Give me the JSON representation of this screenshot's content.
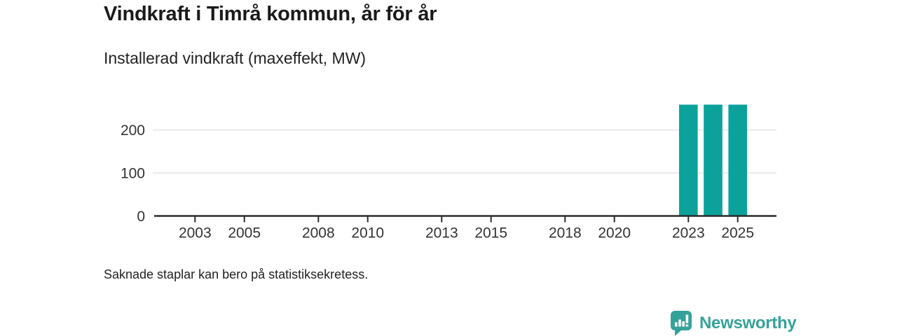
{
  "header": {
    "title": "Vindkraft i Timrå kommun, år för år",
    "subtitle": "Installerad vindkraft (maxeffekt, MW)"
  },
  "footer": {
    "note": "Saknade staplar kan bero på statistiksekretess.",
    "brand": "Newsworthy"
  },
  "colors": {
    "bar": "#0ba29b",
    "axis": "#2b2b2b",
    "grid": "#e2e2e2",
    "tick_label": "#333333",
    "brand": "#35a29a"
  },
  "chart_data": {
    "type": "bar",
    "title": "Vindkraft i Timrå kommun, år för år",
    "subtitle": "Installerad vindkraft (maxeffekt, MW)",
    "ylabel": "Installerad vindkraft (maxeffekt, MW)",
    "x_domain": [
      2002,
      2026
    ],
    "ylim": [
      0,
      280
    ],
    "y_ticks": [
      0,
      100,
      200
    ],
    "x_tick_labels": [
      "2003",
      "2005",
      "2008",
      "2010",
      "2013",
      "2015",
      "2018",
      "2020",
      "2023",
      "2025"
    ],
    "bars": [
      {
        "year": 2023,
        "value": 259
      },
      {
        "year": 2024,
        "value": 259
      },
      {
        "year": 2025,
        "value": 259
      }
    ],
    "grid": "horizontal-only",
    "legend": "none",
    "annotation": "Saknade staplar kan bero på statistiksekretess."
  }
}
